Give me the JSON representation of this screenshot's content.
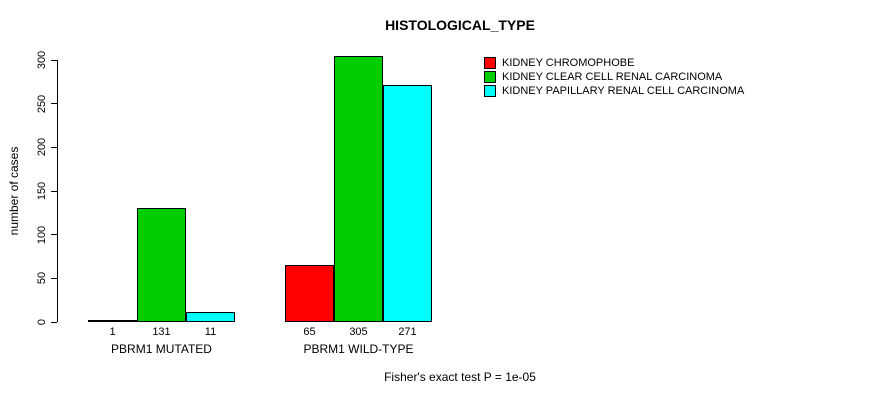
{
  "chart_data": {
    "type": "bar",
    "title": "HISTOLOGICAL_TYPE",
    "ylabel": "number of cases",
    "xlabel": "",
    "categories": [
      "PBRM1 MUTATED",
      "PBRM1 WILD-TYPE"
    ],
    "series": [
      {
        "name": "KIDNEY CHROMOPHOBE",
        "color": "#ff0000",
        "values": [
          1,
          65
        ]
      },
      {
        "name": "KIDNEY CLEAR CELL RENAL CARCINOMA",
        "color": "#00cd00",
        "values": [
          131,
          305
        ]
      },
      {
        "name": "KIDNEY PAPILLARY RENAL CELL CARCINOMA",
        "color": "#00ffff",
        "values": [
          11,
          271
        ]
      }
    ],
    "bar_value_labels": [
      [
        1,
        131,
        11
      ],
      [
        65,
        305,
        271
      ]
    ],
    "ylim": [
      0,
      300
    ],
    "yticks": [
      0,
      50,
      100,
      150,
      200,
      250,
      300
    ],
    "grid": false,
    "legend_position": "top-right",
    "annotation": "Fisher's exact test P = 1e-05"
  }
}
